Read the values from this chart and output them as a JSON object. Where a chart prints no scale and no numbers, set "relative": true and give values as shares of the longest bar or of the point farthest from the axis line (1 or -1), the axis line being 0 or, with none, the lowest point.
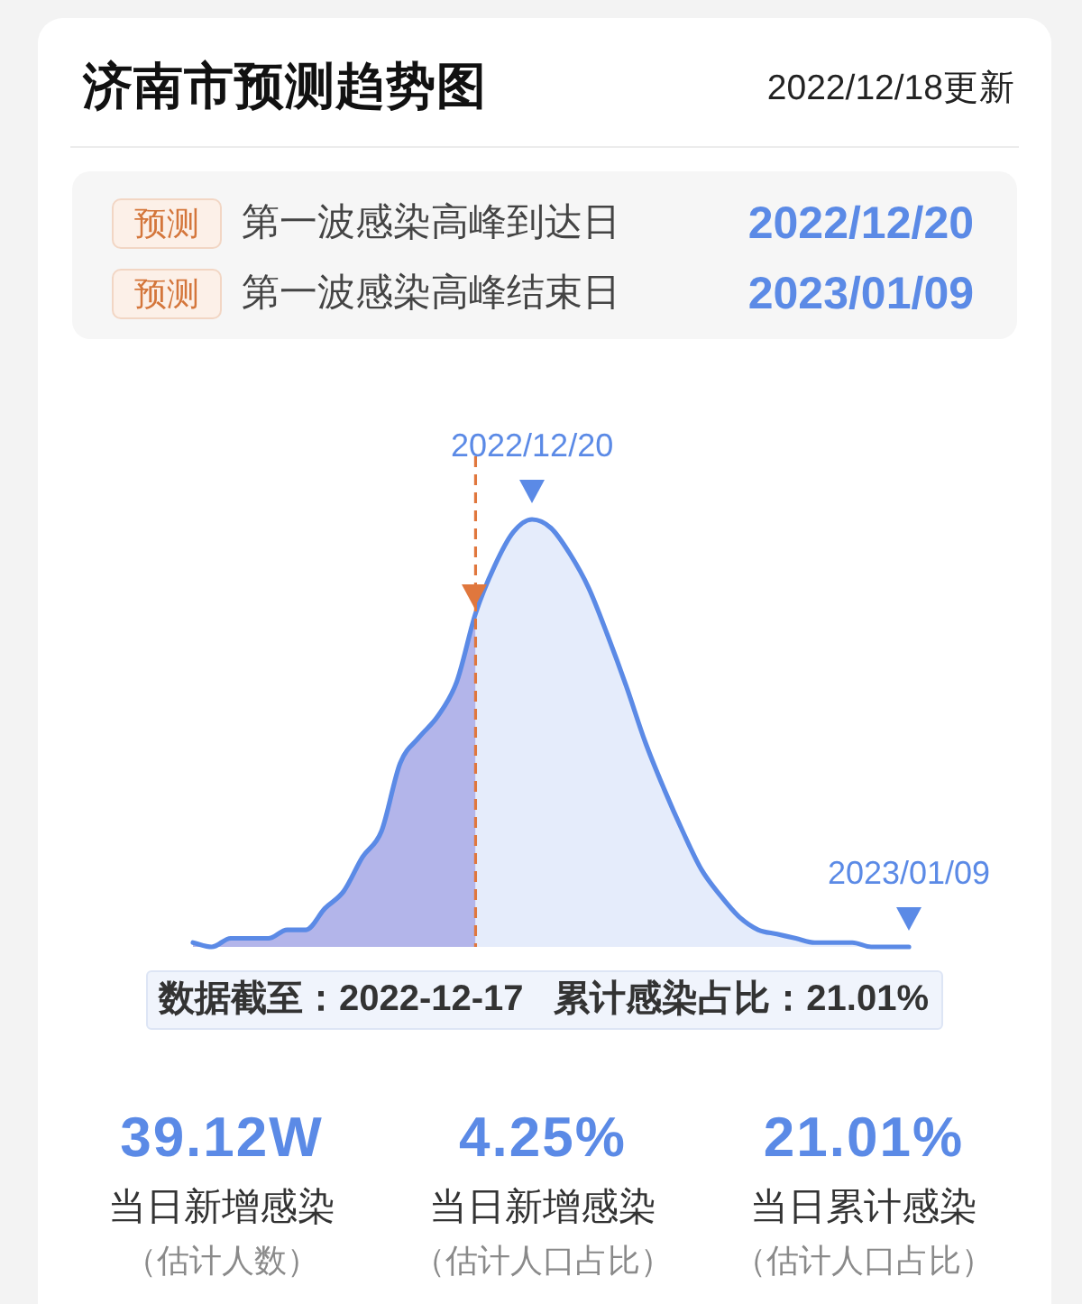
{
  "chart_data": {
    "type": "area",
    "title": "济南市预测趋势图",
    "subtitle": "2022/12/18更新",
    "categories": [
      null,
      null,
      null,
      null,
      null,
      null,
      null,
      null,
      null,
      null,
      null,
      null,
      null,
      null,
      null,
      null,
      null,
      null,
      null,
      null,
      null,
      null,
      null,
      null,
      null,
      null,
      null,
      null,
      null,
      null,
      null,
      null,
      null,
      null,
      null,
      null,
      null,
      null,
      null
    ],
    "series": [
      {
        "color": "#b3b5ea",
        "values": [
          0.01,
          0,
          0.02,
          0.02,
          0.02,
          0.04,
          0.04,
          0.09,
          0.13,
          0.21,
          0.27,
          0.43,
          0.49,
          0.54,
          0.62,
          0.78,
          null,
          null,
          null,
          null,
          null,
          null,
          null,
          null,
          null,
          null,
          null,
          null,
          null,
          null,
          null,
          null,
          null,
          null,
          null,
          null,
          null,
          null,
          null
        ]
      },
      {
        "color": "#5b8ae6",
        "values": [
          0.01,
          0,
          0.02,
          0.02,
          0.02,
          0.04,
          0.04,
          0.09,
          0.13,
          0.21,
          0.27,
          0.43,
          0.49,
          0.54,
          0.62,
          0.78,
          0.89,
          0.97,
          1,
          0.98,
          0.92,
          0.84,
          0.73,
          0.61,
          0.48,
          0.37,
          0.27,
          0.18,
          0.12,
          0.07,
          0.04,
          0.03,
          0.02,
          0.01,
          0.01,
          0.01,
          0,
          0,
          0
        ]
      }
    ],
    "relative": true,
    "tick_labels": false,
    "annotations": [
      {
        "text": "2022/12/20",
        "y": 1
      },
      {
        "text": "2023/01/09",
        "y": 0
      },
      "预测",
      "第一波感染高峰到达日",
      "2022/12/20",
      "预测",
      "第一波感染高峰结束日",
      "2023/01/09",
      "数据截至：2022-12-17",
      "累计感染占比：21.01%",
      "39.12W",
      "当日新增感染",
      "（估计人数）",
      "4.25%",
      "当日新增感染",
      "（估计人口占比）",
      "21.01%",
      "当日累计感染",
      "（估计人口占比）"
    ]
  }
}
